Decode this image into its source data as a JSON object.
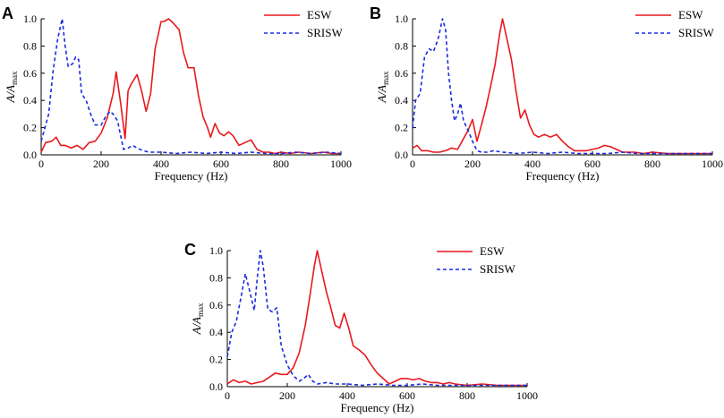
{
  "colors": {
    "esw": "#e8191e",
    "srisw": "#1a2be0",
    "axis": "#000000"
  },
  "legend": [
    {
      "name": "ESW",
      "style": "solid",
      "color": "#e8191e"
    },
    {
      "name": "SRISW",
      "style": "dashed",
      "color": "#1a2be0"
    }
  ],
  "chart_data": [
    {
      "type": "line",
      "panel_label": "A",
      "xlabel": "Frequency (Hz)",
      "ylabel_main": "A/A",
      "ylabel_sub": "max",
      "xlim": [
        0,
        1000
      ],
      "ylim": [
        0,
        1.0
      ],
      "xticks": [
        0,
        200,
        400,
        600,
        800,
        1000
      ],
      "yticks": [
        0.0,
        0.2,
        0.4,
        0.6,
        0.8,
        1.0
      ],
      "ytick_labels": [
        "0.0",
        "0.2",
        "0.4",
        "0.6",
        "0.8",
        "1.0"
      ],
      "legend_position": "top-right",
      "series": [
        {
          "name": "ESW",
          "x": [
            0,
            15,
            35,
            50,
            65,
            80,
            100,
            120,
            140,
            160,
            180,
            200,
            220,
            240,
            250,
            265,
            280,
            290,
            300,
            320,
            335,
            350,
            365,
            380,
            400,
            410,
            425,
            440,
            460,
            475,
            490,
            510,
            525,
            540,
            555,
            565,
            580,
            595,
            610,
            625,
            640,
            660,
            680,
            700,
            720,
            740,
            760,
            780,
            800,
            830,
            860,
            900,
            940,
            970,
            1000
          ],
          "y": [
            0.02,
            0.09,
            0.1,
            0.13,
            0.07,
            0.07,
            0.05,
            0.07,
            0.04,
            0.09,
            0.1,
            0.16,
            0.27,
            0.45,
            0.61,
            0.38,
            0.12,
            0.47,
            0.52,
            0.59,
            0.47,
            0.32,
            0.45,
            0.78,
            0.98,
            0.98,
            1.0,
            0.97,
            0.92,
            0.75,
            0.64,
            0.64,
            0.43,
            0.28,
            0.2,
            0.13,
            0.23,
            0.16,
            0.14,
            0.17,
            0.14,
            0.07,
            0.09,
            0.11,
            0.04,
            0.02,
            0.02,
            0.01,
            0.02,
            0.01,
            0.02,
            0.01,
            0.02,
            0.01,
            0.01
          ]
        },
        {
          "name": "SRISW",
          "x": [
            0,
            10,
            25,
            40,
            55,
            70,
            80,
            90,
            105,
            115,
            125,
            135,
            150,
            165,
            180,
            200,
            215,
            230,
            240,
            255,
            265,
            275,
            290,
            305,
            320,
            340,
            360,
            400,
            450,
            500,
            550,
            600,
            650,
            700,
            750,
            800,
            850,
            900,
            950,
            1000
          ],
          "y": [
            0.1,
            0.18,
            0.3,
            0.62,
            0.85,
            1.0,
            0.8,
            0.65,
            0.67,
            0.72,
            0.7,
            0.45,
            0.4,
            0.3,
            0.22,
            0.22,
            0.28,
            0.32,
            0.3,
            0.25,
            0.14,
            0.04,
            0.05,
            0.07,
            0.05,
            0.03,
            0.02,
            0.02,
            0.01,
            0.02,
            0.01,
            0.02,
            0.01,
            0.02,
            0.01,
            0.01,
            0.02,
            0.01,
            0.02,
            0.01
          ]
        }
      ]
    },
    {
      "type": "line",
      "panel_label": "B",
      "xlabel": "Frequency (Hz)",
      "ylabel_main": "A/A",
      "ylabel_sub": "max",
      "xlim": [
        0,
        1000
      ],
      "ylim": [
        0,
        1.0
      ],
      "xticks": [
        0,
        200,
        400,
        600,
        800,
        1000
      ],
      "yticks": [
        0.0,
        0.2,
        0.4,
        0.6,
        0.8,
        1.0
      ],
      "ytick_labels": [
        "0.0",
        "0.2",
        "0.4",
        "0.6",
        "0.8",
        "1.0"
      ],
      "legend_position": "top-right",
      "series": [
        {
          "name": "ESW",
          "x": [
            0,
            15,
            30,
            50,
            70,
            90,
            110,
            130,
            150,
            170,
            185,
            200,
            215,
            230,
            245,
            260,
            275,
            290,
            300,
            315,
            330,
            345,
            360,
            375,
            390,
            405,
            420,
            440,
            460,
            480,
            500,
            520,
            540,
            560,
            580,
            600,
            620,
            640,
            660,
            680,
            700,
            720,
            740,
            770,
            800,
            850,
            900,
            950,
            1000
          ],
          "y": [
            0.05,
            0.07,
            0.03,
            0.03,
            0.02,
            0.02,
            0.03,
            0.05,
            0.04,
            0.12,
            0.18,
            0.26,
            0.1,
            0.22,
            0.35,
            0.5,
            0.66,
            0.88,
            1.0,
            0.85,
            0.7,
            0.47,
            0.27,
            0.33,
            0.22,
            0.15,
            0.13,
            0.15,
            0.13,
            0.15,
            0.1,
            0.06,
            0.03,
            0.03,
            0.03,
            0.04,
            0.05,
            0.07,
            0.06,
            0.04,
            0.02,
            0.02,
            0.02,
            0.01,
            0.02,
            0.01,
            0.01,
            0.01,
            0.01
          ]
        },
        {
          "name": "SRISW",
          "x": [
            0,
            10,
            25,
            40,
            55,
            70,
            85,
            100,
            110,
            120,
            130,
            140,
            150,
            160,
            170,
            185,
            200,
            215,
            230,
            250,
            270,
            300,
            350,
            400,
            450,
            500,
            550,
            600,
            650,
            700,
            750,
            800,
            850,
            900,
            950,
            1000
          ],
          "y": [
            0.2,
            0.4,
            0.45,
            0.72,
            0.78,
            0.76,
            0.85,
            1.0,
            0.92,
            0.6,
            0.4,
            0.25,
            0.3,
            0.38,
            0.25,
            0.18,
            0.1,
            0.03,
            0.02,
            0.02,
            0.03,
            0.02,
            0.01,
            0.02,
            0.01,
            0.02,
            0.01,
            0.01,
            0.01,
            0.02,
            0.01,
            0.01,
            0.01,
            0.01,
            0.01,
            0.01
          ]
        }
      ]
    },
    {
      "type": "line",
      "panel_label": "C",
      "xlabel": "Frequency (Hz)",
      "ylabel_main": "A/A",
      "ylabel_sub": "max",
      "xlim": [
        0,
        1000
      ],
      "ylim": [
        0,
        1.0
      ],
      "xticks": [
        0,
        200,
        400,
        600,
        800,
        1000
      ],
      "yticks": [
        0.0,
        0.2,
        0.4,
        0.6,
        0.8,
        1.0
      ],
      "ytick_labels": [
        "0.0",
        "0.2",
        "0.4",
        "0.6",
        "0.8",
        "1.0"
      ],
      "legend_position": "top-right",
      "series": [
        {
          "name": "ESW",
          "x": [
            0,
            20,
            40,
            60,
            80,
            100,
            120,
            140,
            160,
            180,
            200,
            220,
            240,
            260,
            275,
            290,
            300,
            315,
            330,
            345,
            360,
            375,
            390,
            405,
            420,
            440,
            460,
            480,
            500,
            520,
            540,
            560,
            580,
            600,
            620,
            640,
            660,
            680,
            700,
            720,
            740,
            760,
            800,
            850,
            900,
            950,
            1000
          ],
          "y": [
            0.02,
            0.05,
            0.03,
            0.04,
            0.02,
            0.03,
            0.04,
            0.07,
            0.1,
            0.09,
            0.09,
            0.14,
            0.25,
            0.45,
            0.66,
            0.88,
            1.0,
            0.85,
            0.7,
            0.58,
            0.45,
            0.43,
            0.54,
            0.43,
            0.3,
            0.27,
            0.23,
            0.16,
            0.1,
            0.06,
            0.02,
            0.04,
            0.06,
            0.06,
            0.05,
            0.06,
            0.04,
            0.03,
            0.03,
            0.02,
            0.03,
            0.02,
            0.01,
            0.02,
            0.01,
            0.01,
            0.01
          ]
        },
        {
          "name": "SRISW",
          "x": [
            0,
            15,
            30,
            45,
            60,
            75,
            90,
            100,
            110,
            120,
            135,
            150,
            165,
            180,
            200,
            220,
            240,
            255,
            270,
            285,
            300,
            330,
            360,
            400,
            450,
            500,
            550,
            600,
            650,
            700,
            750,
            800,
            850,
            900,
            950,
            1000
          ],
          "y": [
            0.22,
            0.4,
            0.48,
            0.65,
            0.83,
            0.7,
            0.56,
            0.8,
            1.0,
            0.88,
            0.57,
            0.55,
            0.58,
            0.3,
            0.16,
            0.08,
            0.04,
            0.06,
            0.09,
            0.04,
            0.02,
            0.03,
            0.02,
            0.02,
            0.01,
            0.02,
            0.01,
            0.01,
            0.02,
            0.01,
            0.01,
            0.01,
            0.01,
            0.01,
            0.01,
            0.01
          ]
        }
      ]
    }
  ]
}
